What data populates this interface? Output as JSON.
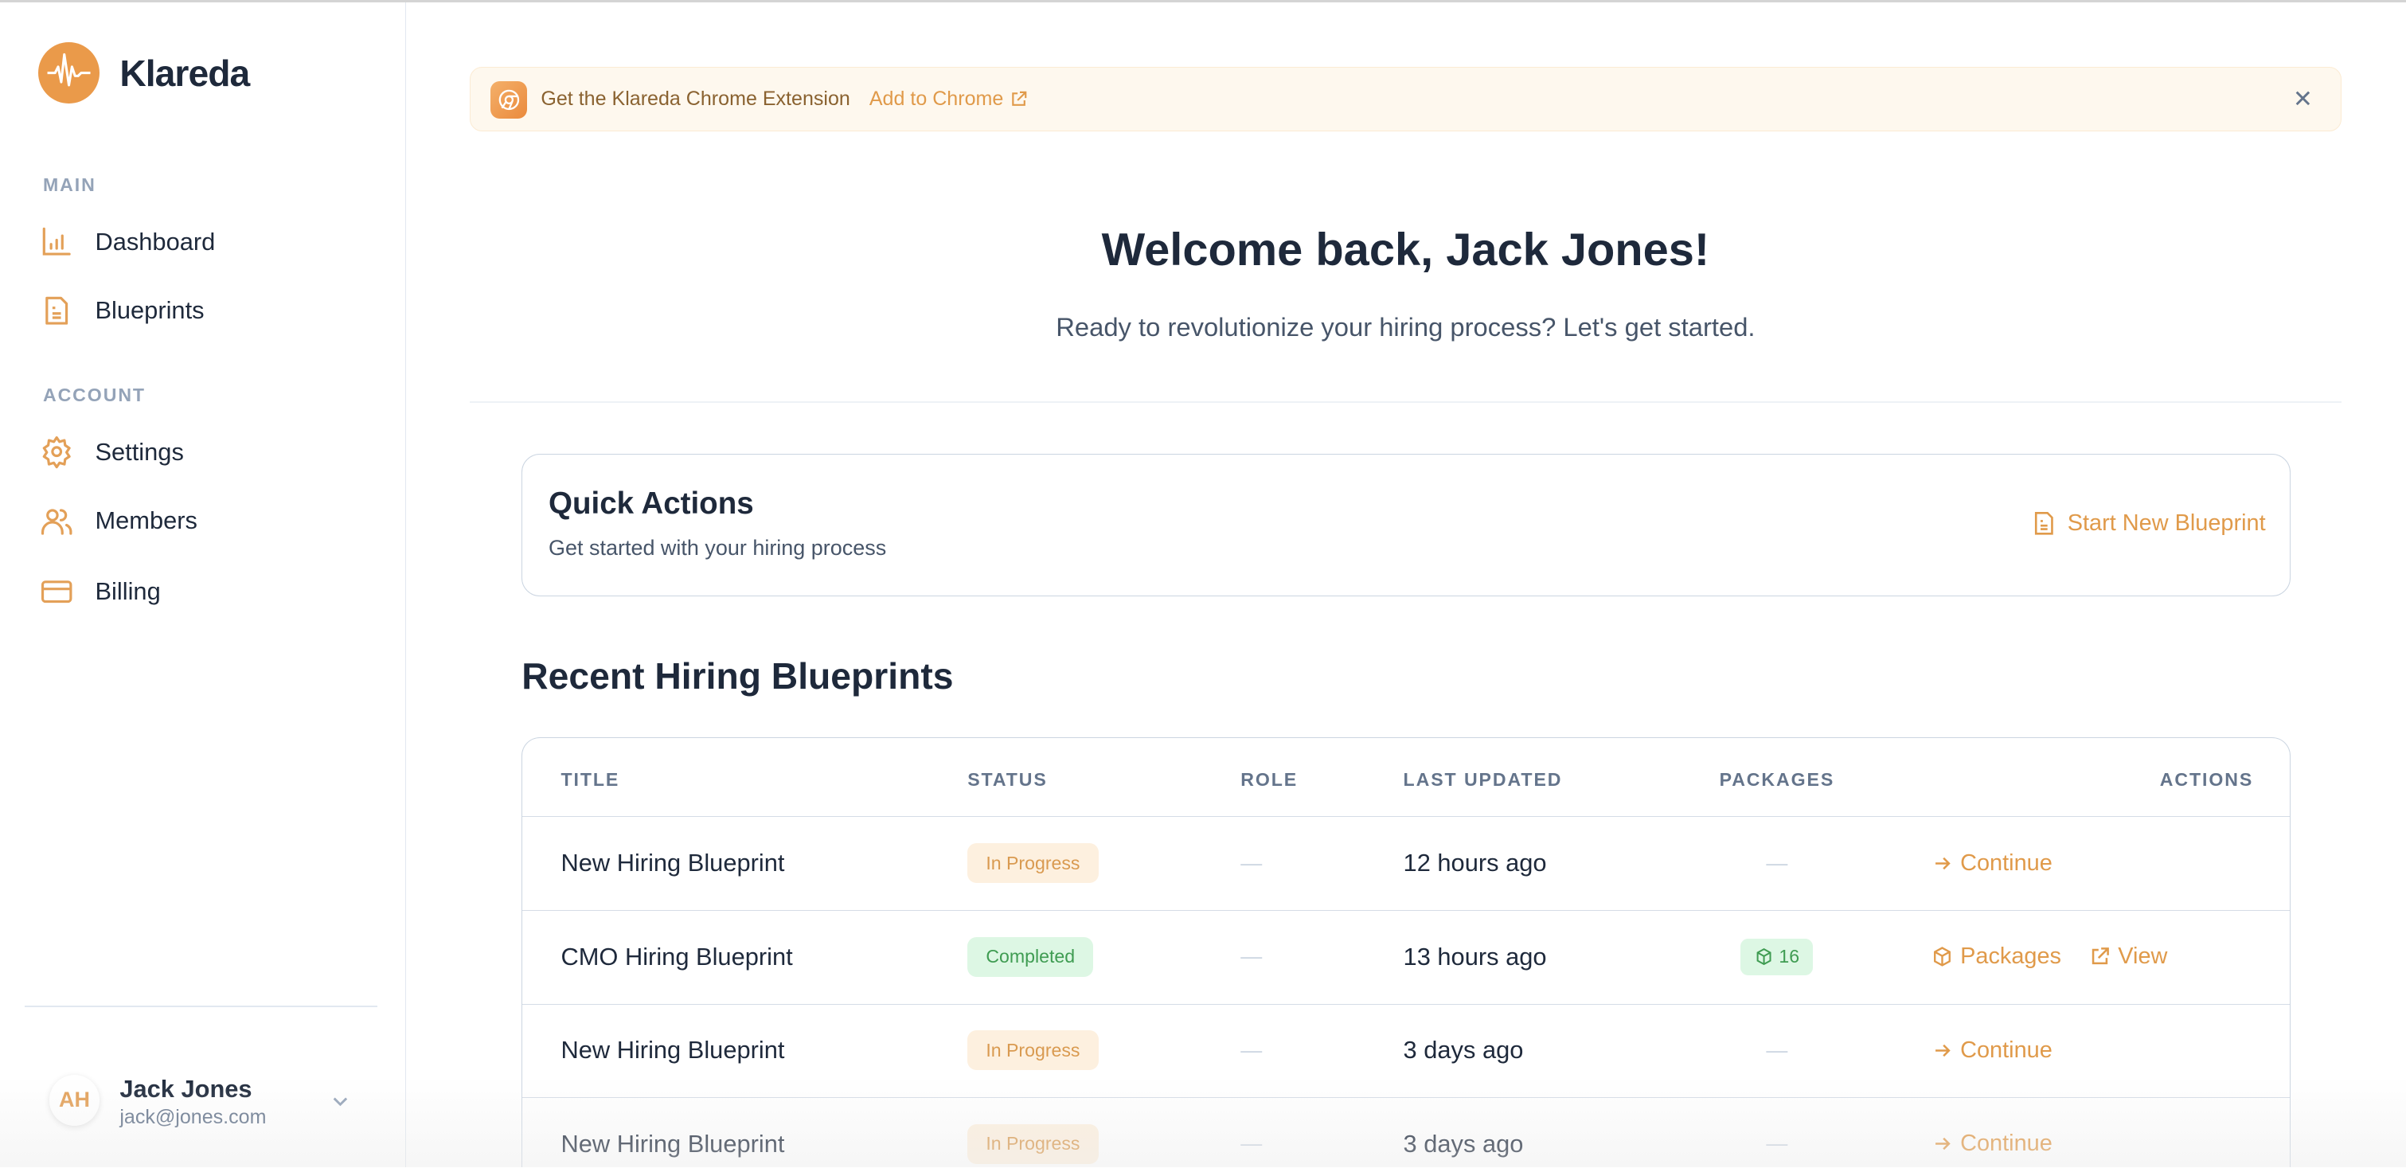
{
  "brand": {
    "name": "Klareda",
    "accent": "#e3a058"
  },
  "sidebar": {
    "sections": [
      {
        "label": "MAIN",
        "items": [
          {
            "label": "Dashboard",
            "icon": "bar-chart-icon"
          },
          {
            "label": "Blueprints",
            "icon": "document-icon"
          }
        ]
      },
      {
        "label": "ACCOUNT",
        "items": [
          {
            "label": "Settings",
            "icon": "gear-icon"
          },
          {
            "label": "Members",
            "icon": "users-icon"
          },
          {
            "label": "Billing",
            "icon": "credit-card-icon"
          }
        ]
      }
    ],
    "user": {
      "initials": "AH",
      "name": "Jack Jones",
      "email": "jack@jones.com"
    }
  },
  "banner": {
    "text": "Get the Klareda Chrome Extension",
    "link": "Add to Chrome"
  },
  "welcome": {
    "title": "Welcome back, Jack Jones!",
    "subtitle": "Ready to revolutionize your hiring process? Let's get started."
  },
  "quick_actions": {
    "title": "Quick Actions",
    "subtitle": "Get started with your hiring process",
    "button": "Start New Blueprint"
  },
  "recent": {
    "title": "Recent Hiring Blueprints",
    "columns": [
      "TITLE",
      "STATUS",
      "ROLE",
      "LAST UPDATED",
      "PACKAGES",
      "ACTIONS"
    ],
    "rows": [
      {
        "title": "New Hiring Blueprint",
        "status": "In Progress",
        "role": "—",
        "updated": "12 hours ago",
        "packages": "—",
        "actions": [
          "Continue"
        ]
      },
      {
        "title": "CMO Hiring Blueprint",
        "status": "Completed",
        "role": "—",
        "updated": "13 hours ago",
        "packages": "16",
        "actions": [
          "Packages",
          "View"
        ]
      },
      {
        "title": "New Hiring Blueprint",
        "status": "In Progress",
        "role": "—",
        "updated": "3 days ago",
        "packages": "—",
        "actions": [
          "Continue"
        ]
      },
      {
        "title": "New Hiring Blueprint",
        "status": "In Progress",
        "role": "—",
        "updated": "3 days ago",
        "packages": "—",
        "actions": [
          "Continue"
        ]
      }
    ]
  }
}
